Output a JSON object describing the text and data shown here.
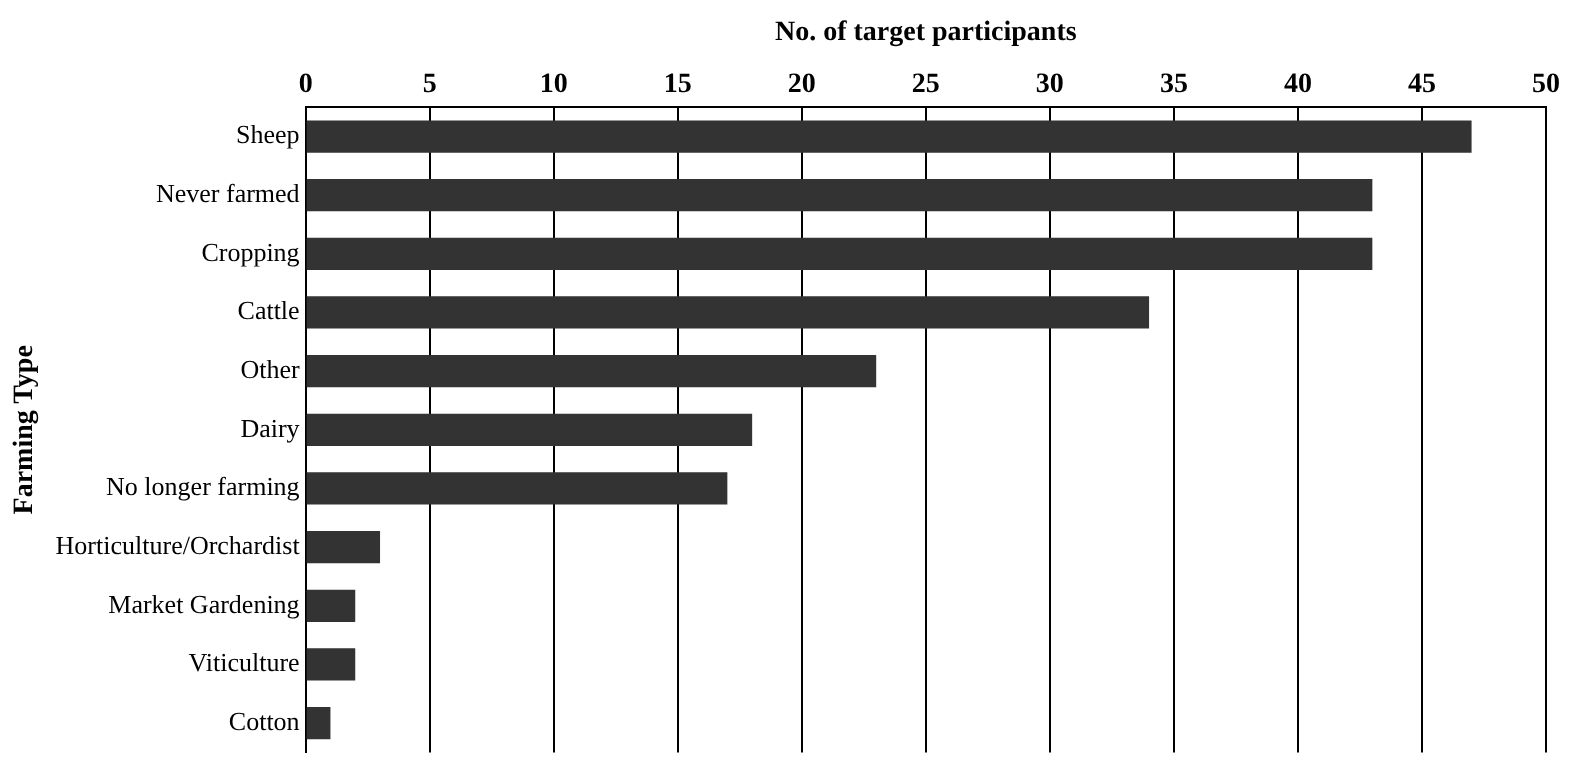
{
  "chart_data": {
    "type": "bar",
    "orientation": "horizontal",
    "xlabel": "No. of target participants",
    "ylabel": "Farming Type",
    "categories": [
      "Sheep",
      "Never farmed",
      "Cropping",
      "Cattle",
      "Other",
      "Dairy",
      "No longer farming",
      "Horticulture/Orchardist",
      "Market Gardening",
      "Viticulture",
      "Cotton"
    ],
    "values": [
      47,
      43,
      43,
      34,
      23,
      18,
      17,
      3,
      2,
      2,
      1
    ],
    "color": "#333333",
    "xlim": [
      0,
      50
    ],
    "xticks": [
      0,
      5,
      10,
      15,
      20,
      25,
      30,
      35,
      40,
      45,
      50
    ],
    "grid": "x",
    "legend": false
  }
}
